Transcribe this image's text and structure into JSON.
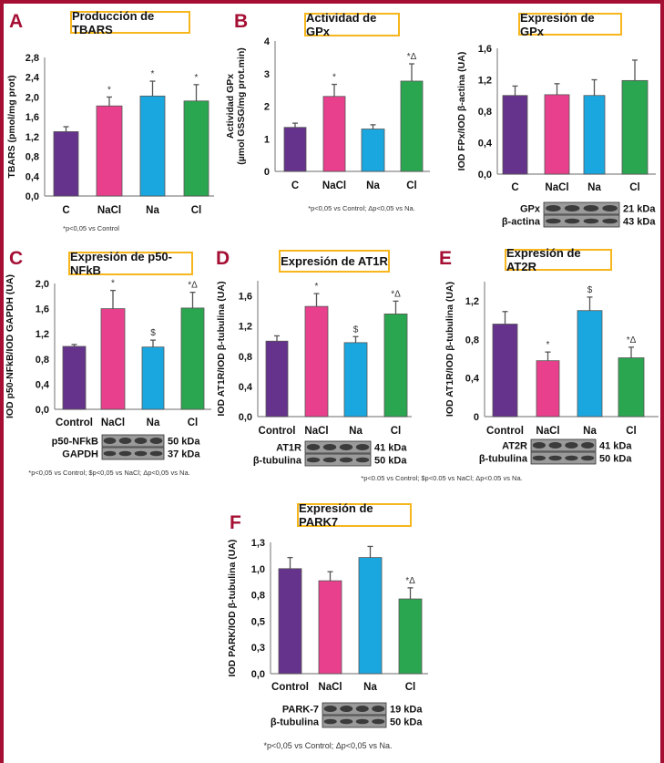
{
  "colors": {
    "frame": "#a50f34",
    "title_box": "#f6b61c",
    "C": "#65338b",
    "NaCl": "#e8408c",
    "Na": "#1aa7e0",
    "Cl": "#2aa650"
  },
  "panels": [
    {
      "letter": "A",
      "title": "Producción de TBARS",
      "footnote": "*p<0,05 vs Control"
    },
    {
      "letter": "B",
      "title": "Actividad de GPx",
      "footnote": "*p<0,05 vs Control; Δp<0,05 vs Na."
    },
    {
      "letter": "",
      "title": "Expresión de GPx",
      "footnote": ""
    },
    {
      "letter": "C",
      "title": "Expresión de p50-NFkB",
      "footnote": "*p<0,05 vs Control; $p<0,05 vs NaCl; Δp<0,05 vs Na."
    },
    {
      "letter": "D",
      "title": "Expresión de AT1R",
      "footnote": ""
    },
    {
      "letter": "E",
      "title": "Expresión de AT2R",
      "footnote": "*p<0.05 vs Control; $p<0.05 vs NaCl; Δp<0.05 vs Na."
    },
    {
      "letter": "F",
      "title": "Expresión de PARK7",
      "footnote": "*p<0,05 vs Control; Δp<0,05 vs Na."
    }
  ],
  "chart_data": [
    {
      "type": "bar",
      "title": "Producción de TBARS",
      "ylabel": [
        "TBARS (pmol/mg prot)"
      ],
      "categories": [
        "C",
        "NaCl",
        "Na",
        "Cl"
      ],
      "values": [
        1.3,
        1.82,
        2.02,
        1.92
      ],
      "errors": [
        0.1,
        0.18,
        0.3,
        0.33
      ],
      "significance": [
        "",
        "*",
        "*",
        "*"
      ],
      "ylim": [
        0,
        2.8
      ],
      "yticks": [
        0,
        0.4,
        0.8,
        1.2,
        1.6,
        2.0,
        2.4,
        2.8
      ],
      "ytick_labels": [
        "0,0",
        "0,4",
        "0,8",
        "1,2",
        "1,6",
        "2,0",
        "2,4",
        "2,8"
      ],
      "blots": []
    },
    {
      "type": "bar",
      "title": "Actividad de GPx",
      "ylabel": [
        "Actividad GPx",
        "(µmol GSSG/mg prot.min)"
      ],
      "categories": [
        "C",
        "NaCl",
        "Na",
        "Cl"
      ],
      "values": [
        1.35,
        2.3,
        1.3,
        2.77
      ],
      "errors": [
        0.13,
        0.37,
        0.13,
        0.53
      ],
      "significance": [
        "",
        "*",
        "",
        "*Δ"
      ],
      "ylim": [
        0,
        4
      ],
      "yticks": [
        0,
        1,
        2,
        3,
        4
      ],
      "ytick_labels": [
        "0",
        "1",
        "2",
        "3",
        "4"
      ],
      "blots": []
    },
    {
      "type": "bar",
      "title": "Expresión de GPx",
      "ylabel": [
        "IOD FPx/IOD β-actina (UA)"
      ],
      "categories": [
        "C",
        "NaCl",
        "Na",
        "Cl"
      ],
      "values": [
        1.0,
        1.01,
        1.0,
        1.19
      ],
      "errors": [
        0.12,
        0.14,
        0.2,
        0.26
      ],
      "significance": [
        "",
        "",
        "",
        ""
      ],
      "ylim": [
        0,
        1.6
      ],
      "yticks": [
        0,
        0.4,
        0.8,
        1.2,
        1.6
      ],
      "ytick_labels": [
        "0,0",
        "0,4",
        "0,8",
        "1,2",
        "1,6"
      ],
      "blots": [
        {
          "label": "GPx",
          "kda": "21 kDa"
        },
        {
          "label": "β-actina",
          "kda": "43 kDa"
        }
      ]
    },
    {
      "type": "bar",
      "title": "Expresión de p50-NFkB",
      "ylabel": [
        "IOD p50-NFkB/IOD GAPDH (UA)"
      ],
      "categories": [
        "Control",
        "NaCl",
        "Na",
        "Cl"
      ],
      "values": [
        1.0,
        1.6,
        0.99,
        1.61
      ],
      "errors": [
        0.03,
        0.29,
        0.11,
        0.25
      ],
      "significance": [
        "",
        "*",
        "$",
        "*Δ"
      ],
      "ylim": [
        0,
        2.0
      ],
      "yticks": [
        0,
        0.4,
        0.8,
        1.2,
        1.6,
        2.0
      ],
      "ytick_labels": [
        "0,0",
        "0,4",
        "0,8",
        "1,2",
        "1,6",
        "2,0"
      ],
      "blots": [
        {
          "label": "p50-NFkB",
          "kda": "50 kDa"
        },
        {
          "label": "GAPDH",
          "kda": "37 kDa"
        }
      ]
    },
    {
      "type": "bar",
      "title": "Expresión de AT1R",
      "ylabel": [
        "IOD AT1R/IOD β-tubulina (UA)"
      ],
      "categories": [
        "Control",
        "NaCl",
        "Na",
        "Cl"
      ],
      "values": [
        1.0,
        1.46,
        0.98,
        1.36
      ],
      "errors": [
        0.07,
        0.17,
        0.08,
        0.17
      ],
      "significance": [
        "",
        "*",
        "$",
        "*Δ"
      ],
      "ylim": [
        0,
        1.8
      ],
      "yticks": [
        0,
        0.4,
        0.8,
        1.2,
        1.6
      ],
      "ytick_labels": [
        "0,0",
        "0,4",
        "0,8",
        "1,2",
        "1,6"
      ],
      "blots": [
        {
          "label": "AT1R",
          "kda": "41 kDa"
        },
        {
          "label": "β-tubulina",
          "kda": "50 kDa"
        }
      ]
    },
    {
      "type": "bar",
      "title": "Expresión de AT2R",
      "ylabel": [
        "IOD AT1R/IOD β-tubulina (UA)"
      ],
      "categories": [
        "Control",
        "NaCl",
        "Na",
        "Cl"
      ],
      "values": [
        0.96,
        0.58,
        1.1,
        0.61
      ],
      "errors": [
        0.13,
        0.09,
        0.14,
        0.11
      ],
      "significance": [
        "",
        "*",
        "$",
        "*Δ"
      ],
      "ylim": [
        0,
        1.4
      ],
      "yticks": [
        0,
        0.4,
        0.8,
        1.2
      ],
      "ytick_labels": [
        "0",
        "0,4",
        "0,8",
        "1,2"
      ],
      "blots": [
        {
          "label": "AT2R",
          "kda": "41 kDa"
        },
        {
          "label": "β-tubulina",
          "kda": "50 kDa"
        }
      ]
    },
    {
      "type": "bar",
      "title": "Expresión de PARK7",
      "ylabel": [
        "IOD PARK/IOD β-tubulina (UA)"
      ],
      "categories": [
        "Control",
        "NaCl",
        "Na",
        "Cl"
      ],
      "values": [
        1.04,
        0.92,
        1.15,
        0.74
      ],
      "errors": [
        0.11,
        0.09,
        0.11,
        0.11
      ],
      "significance": [
        "",
        "",
        "",
        "*Δ"
      ],
      "ylim": [
        0,
        1.3
      ],
      "yticks": [
        0,
        0.26,
        0.52,
        0.78,
        1.04,
        1.3
      ],
      "ytick_labels": [
        "0,0",
        "0,3",
        "0,5",
        "0,8",
        "1,0",
        "1,3"
      ],
      "blots": [
        {
          "label": "PARK-7",
          "kda": "19 kDa"
        },
        {
          "label": "β-tubulina",
          "kda": "50 kDa"
        }
      ]
    }
  ]
}
